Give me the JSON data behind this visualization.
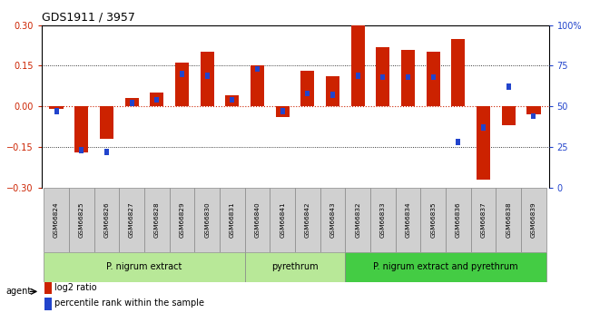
{
  "title": "GDS1911 / 3957",
  "samples": [
    "GSM66824",
    "GSM66825",
    "GSM66826",
    "GSM66827",
    "GSM66828",
    "GSM66829",
    "GSM66830",
    "GSM66831",
    "GSM66840",
    "GSM66841",
    "GSM66842",
    "GSM66843",
    "GSM66832",
    "GSM66833",
    "GSM66834",
    "GSM66835",
    "GSM66836",
    "GSM66837",
    "GSM66838",
    "GSM66839"
  ],
  "log2_ratio": [
    -0.01,
    -0.17,
    -0.12,
    0.03,
    0.05,
    0.16,
    0.2,
    0.04,
    0.15,
    -0.04,
    0.13,
    0.11,
    0.3,
    0.22,
    0.21,
    0.2,
    0.25,
    -0.27,
    -0.07,
    -0.03
  ],
  "percentile": [
    47,
    23,
    22,
    52,
    54,
    70,
    69,
    54,
    73,
    47,
    58,
    57,
    69,
    68,
    68,
    68,
    28,
    37,
    62,
    44
  ],
  "groups": [
    {
      "label": "P. nigrum extract",
      "start": 0,
      "end": 8,
      "color": "#b8e898"
    },
    {
      "label": "pyrethrum",
      "start": 8,
      "end": 12,
      "color": "#b8e898"
    },
    {
      "label": "P. nigrum extract and pyrethrum",
      "start": 12,
      "end": 20,
      "color": "#44cc44"
    }
  ],
  "bar_color_red": "#cc2200",
  "bar_color_blue": "#2244cc",
  "ylim_left": [
    -0.3,
    0.3
  ],
  "ylim_right": [
    0,
    100
  ],
  "yticks_left": [
    -0.3,
    -0.15,
    0.0,
    0.15,
    0.3
  ],
  "yticks_right": [
    0,
    25,
    50,
    75,
    100
  ],
  "bar_width": 0.55,
  "blue_bar_width": 0.18,
  "blue_bar_height": 0.022
}
